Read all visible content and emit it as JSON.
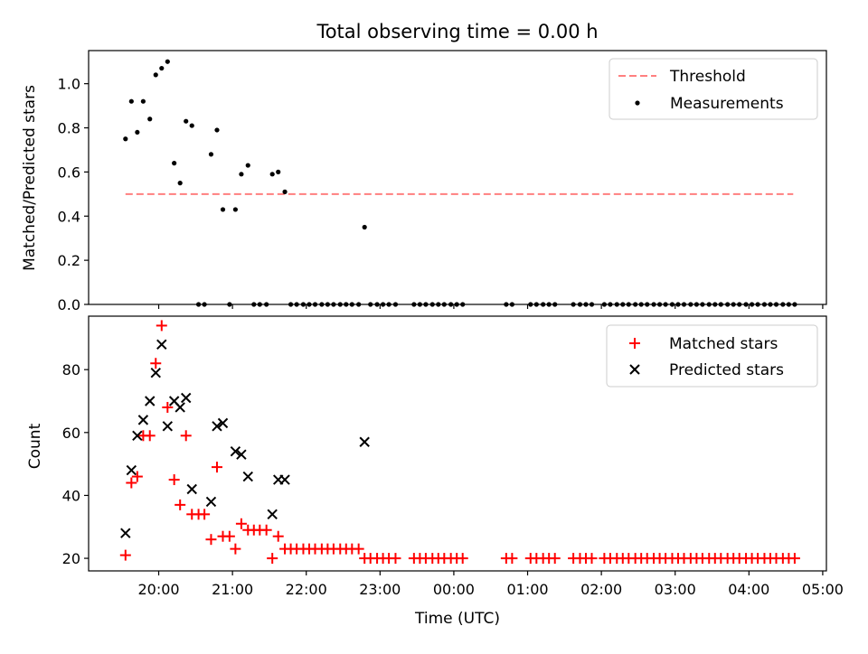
{
  "title": "Total observing time = 0.00 h",
  "chart_data": [
    {
      "type": "scatter",
      "ylabel": "Matched/Predicted stars",
      "ylim": [
        0,
        1.15
      ],
      "yticks": [
        "0.0",
        "0.2",
        "0.4",
        "0.6",
        "0.8",
        "1.0"
      ],
      "ytick_values": [
        0,
        0.2,
        0.4,
        0.6,
        0.8,
        1.0
      ],
      "x_unit": "hours since 20:00 UTC",
      "xlim": [
        -0.95,
        9.05
      ],
      "legend_placement": "upper right",
      "legend": {
        "threshold_label": "Threshold",
        "measurements_label": "Measurements"
      },
      "colors": {
        "threshold": "#ff7f7f",
        "measurements": "#000000"
      },
      "threshold": {
        "value": 0.5,
        "x_start": -0.45,
        "x_end": 8.6
      },
      "series": [
        {
          "name": "Measurements",
          "points": [
            [
              -0.45,
              0.75
            ],
            [
              -0.37,
              0.92
            ],
            [
              -0.29,
              0.78
            ],
            [
              -0.21,
              0.92
            ],
            [
              -0.12,
              0.84
            ],
            [
              -0.04,
              1.04
            ],
            [
              0.04,
              1.07
            ],
            [
              0.12,
              1.1
            ],
            [
              0.21,
              0.64
            ],
            [
              0.29,
              0.55
            ],
            [
              0.37,
              0.83
            ],
            [
              0.45,
              0.81
            ],
            [
              0.54,
              0
            ],
            [
              0.62,
              0
            ],
            [
              0.71,
              0.68
            ],
            [
              0.79,
              0.79
            ],
            [
              0.87,
              0.43
            ],
            [
              0.96,
              0
            ],
            [
              1.04,
              0.43
            ],
            [
              1.12,
              0.59
            ],
            [
              1.21,
              0.63
            ],
            [
              1.29,
              0
            ],
            [
              1.37,
              0
            ],
            [
              1.46,
              0
            ],
            [
              1.54,
              0.59
            ],
            [
              1.62,
              0.6
            ],
            [
              1.71,
              0.51
            ],
            [
              1.79,
              0
            ],
            [
              1.87,
              0
            ],
            [
              1.96,
              0
            ],
            [
              2.04,
              0
            ],
            [
              2.12,
              0
            ],
            [
              2.21,
              0
            ],
            [
              2.29,
              0
            ],
            [
              2.37,
              0
            ],
            [
              2.46,
              0
            ],
            [
              2.54,
              0
            ],
            [
              2.62,
              0
            ],
            [
              2.71,
              0
            ],
            [
              2.79,
              0.35
            ],
            [
              2.87,
              0
            ],
            [
              2.96,
              0
            ],
            [
              3.04,
              0
            ],
            [
              3.12,
              0
            ],
            [
              3.21,
              0
            ],
            [
              3.46,
              0
            ],
            [
              3.54,
              0
            ],
            [
              3.62,
              0
            ],
            [
              3.71,
              0
            ],
            [
              3.79,
              0
            ],
            [
              3.87,
              0
            ],
            [
              3.96,
              0
            ],
            [
              4.04,
              0
            ],
            [
              4.12,
              0
            ],
            [
              4.71,
              0
            ],
            [
              4.79,
              0
            ],
            [
              5.04,
              0
            ],
            [
              5.12,
              0
            ],
            [
              5.21,
              0
            ],
            [
              5.29,
              0
            ],
            [
              5.37,
              0
            ],
            [
              5.62,
              0
            ],
            [
              5.71,
              0
            ],
            [
              5.79,
              0
            ],
            [
              5.87,
              0
            ],
            [
              6.04,
              0
            ],
            [
              6.12,
              0
            ],
            [
              6.21,
              0
            ],
            [
              6.29,
              0
            ],
            [
              6.37,
              0
            ],
            [
              6.46,
              0
            ],
            [
              6.54,
              0
            ],
            [
              6.62,
              0
            ],
            [
              6.71,
              0
            ],
            [
              6.79,
              0
            ],
            [
              6.87,
              0
            ],
            [
              6.96,
              0
            ],
            [
              7.04,
              0
            ],
            [
              7.12,
              0
            ],
            [
              7.21,
              0
            ],
            [
              7.29,
              0
            ],
            [
              7.37,
              0
            ],
            [
              7.46,
              0
            ],
            [
              7.54,
              0
            ],
            [
              7.62,
              0
            ],
            [
              7.71,
              0
            ],
            [
              7.79,
              0
            ],
            [
              7.87,
              0
            ],
            [
              7.96,
              0
            ],
            [
              8.04,
              0
            ],
            [
              8.12,
              0
            ],
            [
              8.21,
              0
            ],
            [
              8.29,
              0
            ],
            [
              8.37,
              0
            ],
            [
              8.46,
              0
            ],
            [
              8.54,
              0
            ],
            [
              8.62,
              0
            ]
          ]
        }
      ]
    },
    {
      "type": "scatter",
      "ylabel": "Count",
      "xlabel": "Time (UTC)",
      "ylim": [
        16,
        97
      ],
      "yticks": [
        "20",
        "40",
        "60",
        "80"
      ],
      "ytick_values": [
        20,
        40,
        60,
        80
      ],
      "x_unit": "hours since 20:00 UTC",
      "xlim": [
        -0.95,
        9.05
      ],
      "xticks": [
        "20:00",
        "21:00",
        "22:00",
        "23:00",
        "00:00",
        "01:00",
        "02:00",
        "03:00",
        "04:00",
        "05:00"
      ],
      "xtick_values": [
        0,
        1,
        2,
        3,
        4,
        5,
        6,
        7,
        8,
        9
      ],
      "legend_placement": "upper right",
      "legend": {
        "matched_label": "Matched stars",
        "predicted_label": "Predicted stars"
      },
      "colors": {
        "matched": "#ff0000",
        "predicted": "#000000"
      },
      "series": [
        {
          "name": "Matched stars",
          "points": [
            [
              -0.45,
              21
            ],
            [
              -0.37,
              44
            ],
            [
              -0.29,
              46
            ],
            [
              -0.21,
              59
            ],
            [
              -0.12,
              59
            ],
            [
              -0.04,
              82
            ],
            [
              0.04,
              94
            ],
            [
              0.12,
              68
            ],
            [
              0.21,
              45
            ],
            [
              0.29,
              37
            ],
            [
              0.37,
              59
            ],
            [
              0.45,
              34
            ],
            [
              0.54,
              34
            ],
            [
              0.62,
              34
            ],
            [
              0.71,
              26
            ],
            [
              0.79,
              49
            ],
            [
              0.87,
              27
            ],
            [
              0.96,
              27
            ],
            [
              1.04,
              23
            ],
            [
              1.12,
              31
            ],
            [
              1.21,
              29
            ],
            [
              1.29,
              29
            ],
            [
              1.37,
              29
            ],
            [
              1.46,
              29
            ],
            [
              1.54,
              20
            ],
            [
              1.62,
              27
            ],
            [
              1.71,
              23
            ],
            [
              1.79,
              23
            ],
            [
              1.87,
              23
            ],
            [
              1.96,
              23
            ],
            [
              2.04,
              23
            ],
            [
              2.12,
              23
            ],
            [
              2.21,
              23
            ],
            [
              2.29,
              23
            ],
            [
              2.37,
              23
            ],
            [
              2.46,
              23
            ],
            [
              2.54,
              23
            ],
            [
              2.62,
              23
            ],
            [
              2.71,
              23
            ],
            [
              2.79,
              20
            ],
            [
              2.87,
              20
            ],
            [
              2.96,
              20
            ],
            [
              3.04,
              20
            ],
            [
              3.12,
              20
            ],
            [
              3.21,
              20
            ],
            [
              3.46,
              20
            ],
            [
              3.54,
              20
            ],
            [
              3.62,
              20
            ],
            [
              3.71,
              20
            ],
            [
              3.79,
              20
            ],
            [
              3.87,
              20
            ],
            [
              3.96,
              20
            ],
            [
              4.04,
              20
            ],
            [
              4.12,
              20
            ],
            [
              4.71,
              20
            ],
            [
              4.79,
              20
            ],
            [
              5.04,
              20
            ],
            [
              5.12,
              20
            ],
            [
              5.21,
              20
            ],
            [
              5.29,
              20
            ],
            [
              5.37,
              20
            ],
            [
              5.62,
              20
            ],
            [
              5.71,
              20
            ],
            [
              5.79,
              20
            ],
            [
              5.87,
              20
            ],
            [
              6.04,
              20
            ],
            [
              6.12,
              20
            ],
            [
              6.21,
              20
            ],
            [
              6.29,
              20
            ],
            [
              6.37,
              20
            ],
            [
              6.46,
              20
            ],
            [
              6.54,
              20
            ],
            [
              6.62,
              20
            ],
            [
              6.71,
              20
            ],
            [
              6.79,
              20
            ],
            [
              6.87,
              20
            ],
            [
              6.96,
              20
            ],
            [
              7.04,
              20
            ],
            [
              7.12,
              20
            ],
            [
              7.21,
              20
            ],
            [
              7.29,
              20
            ],
            [
              7.37,
              20
            ],
            [
              7.46,
              20
            ],
            [
              7.54,
              20
            ],
            [
              7.62,
              20
            ],
            [
              7.71,
              20
            ],
            [
              7.79,
              20
            ],
            [
              7.87,
              20
            ],
            [
              7.96,
              20
            ],
            [
              8.04,
              20
            ],
            [
              8.12,
              20
            ],
            [
              8.21,
              20
            ],
            [
              8.29,
              20
            ],
            [
              8.37,
              20
            ],
            [
              8.46,
              20
            ],
            [
              8.54,
              20
            ],
            [
              8.62,
              20
            ]
          ]
        },
        {
          "name": "Predicted stars",
          "points": [
            [
              -0.45,
              28
            ],
            [
              -0.37,
              48
            ],
            [
              -0.29,
              59
            ],
            [
              -0.21,
              64
            ],
            [
              -0.12,
              70
            ],
            [
              -0.04,
              79
            ],
            [
              0.04,
              88
            ],
            [
              0.12,
              62
            ],
            [
              0.21,
              70
            ],
            [
              0.29,
              68
            ],
            [
              0.37,
              71
            ],
            [
              0.45,
              42
            ],
            [
              0.71,
              38
            ],
            [
              0.79,
              62
            ],
            [
              0.87,
              63
            ],
            [
              1.04,
              54
            ],
            [
              1.12,
              53
            ],
            [
              1.21,
              46
            ],
            [
              1.54,
              34
            ],
            [
              1.62,
              45
            ],
            [
              1.71,
              45
            ],
            [
              2.79,
              57
            ]
          ]
        }
      ]
    }
  ]
}
